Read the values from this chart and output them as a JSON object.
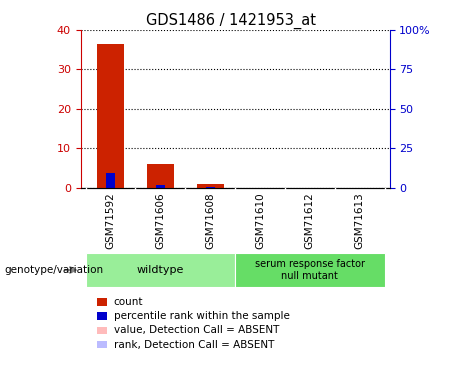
{
  "title": "GDS1486 / 1421953_at",
  "samples": [
    "GSM71592",
    "GSM71606",
    "GSM71608",
    "GSM71610",
    "GSM71612",
    "GSM71613"
  ],
  "count_values": [
    36.5,
    6.0,
    1.0,
    0.0,
    0.0,
    0.0
  ],
  "rank_values_scaled": [
    9.0,
    1.5,
    0.5,
    0.0,
    0.0,
    0.0
  ],
  "ylim_left": [
    0,
    40
  ],
  "ylim_right": [
    0,
    100
  ],
  "yticks_left": [
    0,
    10,
    20,
    30,
    40
  ],
  "yticks_right": [
    0,
    25,
    50,
    75,
    100
  ],
  "ytick_labels_right": [
    "0",
    "25",
    "50",
    "75",
    "100%"
  ],
  "left_tick_color": "#cc0000",
  "right_tick_color": "#0000cc",
  "wildtype_color": "#99ee99",
  "mutant_color": "#66dd66",
  "genotype_label": "genotype/variation",
  "bar_color_red": "#cc2200",
  "bar_color_blue": "#0000cc",
  "bar_color_pink": "#ffbbbb",
  "bar_color_lightblue": "#bbbbff",
  "legend_items": [
    {
      "color": "#cc2200",
      "label": "count"
    },
    {
      "color": "#0000cc",
      "label": "percentile rank within the sample"
    },
    {
      "color": "#ffbbbb",
      "label": "value, Detection Call = ABSENT"
    },
    {
      "color": "#bbbbff",
      "label": "rank, Detection Call = ABSENT"
    }
  ],
  "sample_bg_color": "#cccccc",
  "plot_bg_color": "#ffffff",
  "n_wildtype": 3,
  "n_mutant": 3
}
